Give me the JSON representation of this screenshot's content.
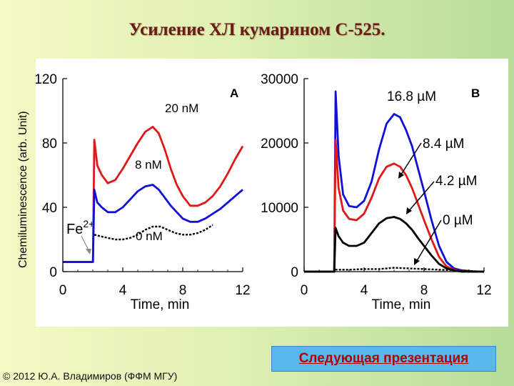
{
  "slide": {
    "title": "Усиление ХЛ кумарином С-525.",
    "next_button": "Следующая презентация",
    "copyright": "© 2012 Ю.А. Владимиров (ФФМ МГУ)"
  },
  "colors": {
    "red": "#e01818",
    "blue": "#1010d8",
    "black": "#000000",
    "gray": "#8a8a8a"
  },
  "chart_data": [
    {
      "type": "line",
      "panel": "A",
      "ylabel": "Chemiluminescence (arb. Unit)",
      "xlabel": "Time, min",
      "xlim": [
        0,
        12
      ],
      "ylim": [
        0,
        120
      ],
      "xticks": [
        "0",
        "4",
        "8",
        "12"
      ],
      "yticks": [
        "0",
        "40",
        "80",
        "120"
      ],
      "annotations": {
        "fe_base": "Fe",
        "fe_sup": "2+"
      },
      "series": [
        {
          "name": "20 nM",
          "color": "#e01818",
          "x": [
            0,
            2,
            2.01,
            2.1,
            2.3,
            2.6,
            3.0,
            3.5,
            4.0,
            4.5,
            5.0,
            5.5,
            6.0,
            6.4,
            6.8,
            7.2,
            7.6,
            8.0,
            8.5,
            9.0,
            9.5,
            10.0,
            10.5,
            11.0,
            11.5,
            12.0
          ],
          "y": [
            6,
            6,
            6,
            82,
            66,
            60,
            55,
            57,
            64,
            72,
            80,
            87,
            90,
            86,
            76,
            64,
            54,
            47,
            41,
            41,
            43,
            47,
            53,
            61,
            70,
            78
          ]
        },
        {
          "name": "8 nM",
          "color": "#1010d8",
          "x": [
            0,
            2,
            2.01,
            2.1,
            2.3,
            2.6,
            3.0,
            3.5,
            4.0,
            4.5,
            5.0,
            5.5,
            6.0,
            6.4,
            6.8,
            7.2,
            7.6,
            8.0,
            8.5,
            9.0,
            9.5,
            10.0,
            10.5,
            11.0,
            11.5,
            12.0
          ],
          "y": [
            6,
            6,
            6,
            51,
            43,
            40,
            37,
            37,
            40,
            45,
            50,
            53,
            54,
            51,
            46,
            41,
            37,
            33,
            31,
            31,
            33,
            36,
            39,
            43,
            47,
            51
          ]
        },
        {
          "name": "0 nM",
          "color": "#000000",
          "dashed": true,
          "x": [
            2.1,
            2.5,
            3.0,
            3.5,
            4.0,
            4.5,
            5.0,
            5.5,
            6.0,
            6.5,
            7.0,
            7.5,
            8.0,
            8.5,
            9.0,
            9.5,
            10.0
          ],
          "y": [
            23,
            22,
            21,
            20,
            20,
            21,
            23,
            26,
            28,
            28,
            26,
            24,
            23,
            23,
            24,
            26,
            29
          ]
        }
      ]
    },
    {
      "type": "line",
      "panel": "B",
      "xlabel": "Time, min",
      "xlim": [
        0,
        12
      ],
      "ylim": [
        0,
        30000
      ],
      "xticks": [
        "0",
        "4",
        "8",
        "12"
      ],
      "yticks": [
        "0",
        "10000",
        "20000",
        "30000"
      ],
      "series": [
        {
          "name": "16.8 µM",
          "color": "#1010d8",
          "x": [
            0,
            2,
            2.01,
            2.1,
            2.3,
            2.6,
            3.0,
            3.5,
            4.0,
            4.5,
            5.0,
            5.5,
            6.0,
            6.4,
            6.8,
            7.2,
            7.6,
            8.0,
            8.5,
            9.0,
            9.5,
            10.0,
            10.5,
            11.0,
            11.5,
            12.0
          ],
          "y": [
            0,
            0,
            0,
            28000,
            18000,
            12000,
            10200,
            10000,
            11000,
            14000,
            19000,
            23000,
            24500,
            24000,
            22000,
            19500,
            16000,
            12500,
            8000,
            4000,
            1500,
            500,
            200,
            100,
            0,
            0
          ]
        },
        {
          "name": "8.4 µM",
          "color": "#e01818",
          "x": [
            0,
            2,
            2.01,
            2.1,
            2.3,
            2.6,
            3.0,
            3.5,
            4.0,
            4.5,
            5.0,
            5.5,
            6.0,
            6.4,
            6.8,
            7.2,
            7.6,
            8.0,
            8.5,
            9.0,
            9.5,
            10.0,
            10.5,
            11.0,
            11.5,
            12.0
          ],
          "y": [
            0,
            0,
            0,
            20500,
            13000,
            9500,
            8200,
            8000,
            9000,
            11500,
            14500,
            16300,
            16800,
            16300,
            15000,
            13000,
            10500,
            8000,
            5000,
            2300,
            800,
            300,
            100,
            0,
            0,
            0
          ]
        },
        {
          "name": "4.2 µM",
          "color": "#000000",
          "x": [
            0,
            2,
            2.01,
            2.1,
            2.3,
            2.6,
            3.0,
            3.5,
            4.0,
            4.5,
            5.0,
            5.5,
            6.0,
            6.4,
            6.8,
            7.2,
            7.6,
            8.0,
            8.5,
            9.0,
            9.5,
            10.0,
            10.5,
            11.0,
            11.5,
            12.0
          ],
          "y": [
            0,
            0,
            0,
            6800,
            5500,
            4500,
            4000,
            4000,
            4500,
            6000,
            7500,
            8300,
            8500,
            8200,
            7500,
            6500,
            5200,
            4000,
            2500,
            1200,
            500,
            200,
            0,
            0,
            0,
            0
          ]
        },
        {
          "name": "0 µM",
          "color": "#000000",
          "dashed": true,
          "x": [
            0,
            2,
            2.1,
            3.0,
            4.0,
            5.0,
            6.0,
            7.0,
            8.0,
            9.0,
            10.0,
            11.0,
            12.0
          ],
          "y": [
            0,
            0,
            300,
            300,
            400,
            400,
            600,
            500,
            400,
            300,
            200,
            100,
            0
          ]
        }
      ]
    }
  ]
}
